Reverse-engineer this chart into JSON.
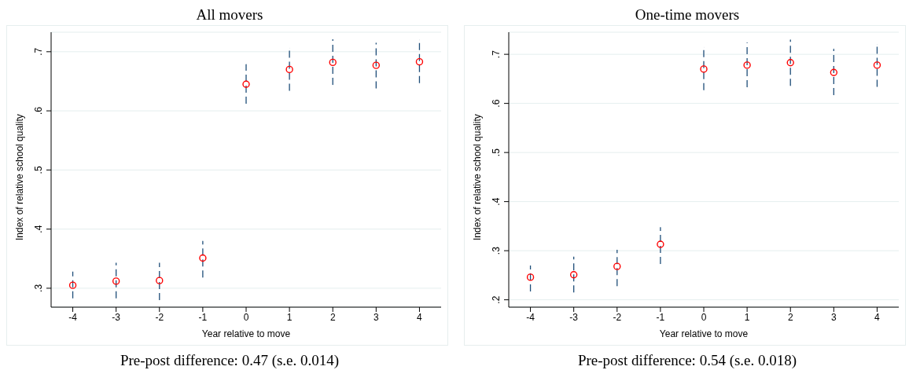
{
  "chart_data": [
    {
      "type": "scatter",
      "title": "All movers",
      "xlabel": "Year relative to move",
      "ylabel": "Index of relative school quality",
      "x": [
        -4,
        -3,
        -2,
        -1,
        0,
        1,
        2,
        3,
        4
      ],
      "series": [
        {
          "color": "#ff0000",
          "values": [
            0.305,
            0.312,
            0.313,
            0.351,
            0.645,
            0.67,
            0.682,
            0.677,
            0.683
          ],
          "errors": [
            [
              0.283,
              0.328
            ],
            [
              0.283,
              0.343
            ],
            [
              0.28,
              0.343
            ],
            [
              0.318,
              0.38
            ],
            [
              0.612,
              0.679
            ],
            [
              0.634,
              0.706
            ],
            [
              0.644,
              0.721
            ],
            [
              0.638,
              0.715
            ],
            [
              0.647,
              0.72
            ]
          ]
        }
      ],
      "xlim": [
        -4.5,
        4.5
      ],
      "xticks": [
        -4,
        -3,
        -2,
        -1,
        0,
        1,
        2,
        3,
        4
      ],
      "ylim": [
        0.268,
        0.733
      ],
      "yticks": [
        {
          "value": 0.3,
          "label": ".3"
        },
        {
          "value": 0.4,
          "label": ".4"
        },
        {
          "value": 0.5,
          "label": ".5"
        },
        {
          "value": 0.6,
          "label": ".6"
        },
        {
          "value": 0.7,
          "label": ".7"
        }
      ],
      "grid": "y",
      "marker": "circle",
      "annotations": [
        "Pre-post difference: 0.47 (s.e. 0.014)"
      ]
    },
    {
      "type": "scatter",
      "title": "One-time movers",
      "xlabel": "Year relative to move",
      "ylabel": "Index of relative school quality",
      "x": [
        -4,
        -3,
        -2,
        -1,
        0,
        1,
        2,
        3,
        4
      ],
      "series": [
        {
          "color": "#ff0000",
          "values": [
            0.246,
            0.251,
            0.268,
            0.313,
            0.67,
            0.678,
            0.683,
            0.663,
            0.678
          ],
          "errors": [
            [
              0.217,
              0.27
            ],
            [
              0.215,
              0.288
            ],
            [
              0.228,
              0.302
            ],
            [
              0.273,
              0.348
            ],
            [
              0.627,
              0.714
            ],
            [
              0.633,
              0.724
            ],
            [
              0.636,
              0.73
            ],
            [
              0.617,
              0.711
            ],
            [
              0.634,
              0.72
            ]
          ]
        }
      ],
      "xlim": [
        -4.5,
        4.5
      ],
      "xticks": [
        -4,
        -3,
        -2,
        -1,
        0,
        1,
        2,
        3,
        4
      ],
      "ylim": [
        0.185,
        0.745
      ],
      "yticks": [
        {
          "value": 0.2,
          "label": ".2"
        },
        {
          "value": 0.3,
          "label": ".3"
        },
        {
          "value": 0.4,
          "label": ".4"
        },
        {
          "value": 0.5,
          "label": ".5"
        },
        {
          "value": 0.6,
          "label": ".6"
        },
        {
          "value": 0.7,
          "label": ".7"
        }
      ],
      "grid": "y",
      "marker": "circle",
      "annotations": [
        "Pre-post difference: 0.54 (s.e. 0.018)"
      ]
    }
  ]
}
